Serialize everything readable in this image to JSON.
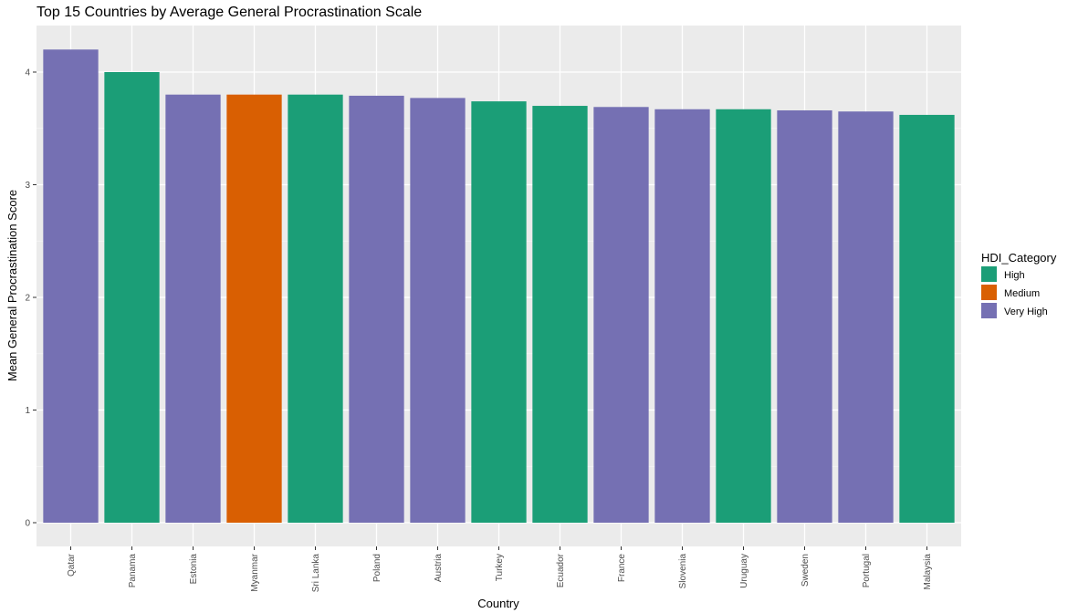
{
  "chart_data": {
    "type": "bar",
    "title": "Top 15 Countries by Average General Procrastination Scale",
    "xlabel": "Country",
    "ylabel": "Mean General Procrastination Score",
    "ylim": [
      0,
      4.2
    ],
    "yticks": [
      0,
      1,
      2,
      3,
      4
    ],
    "grid": true,
    "legend": {
      "title": "HDI_Category",
      "placement": "right",
      "entries": [
        {
          "name": "High",
          "color": "#1b9e77"
        },
        {
          "name": "Medium",
          "color": "#d95f02"
        },
        {
          "name": "Very High",
          "color": "#7570b3"
        }
      ]
    },
    "categories": [
      "Qatar",
      "Panama",
      "Estonia",
      "Myanmar",
      "Sri Lanka",
      "Poland",
      "Austria",
      "Turkey",
      "Ecuador",
      "France",
      "Slovenia",
      "Uruguay",
      "Sweden",
      "Portugal",
      "Malaysia"
    ],
    "values": [
      4.2,
      4.0,
      3.8,
      3.8,
      3.8,
      3.79,
      3.77,
      3.74,
      3.7,
      3.69,
      3.67,
      3.67,
      3.66,
      3.65,
      3.62
    ],
    "hdi_category": [
      "Very High",
      "High",
      "Very High",
      "Medium",
      "High",
      "Very High",
      "Very High",
      "High",
      "High",
      "Very High",
      "Very High",
      "High",
      "Very High",
      "Very High",
      "High"
    ]
  }
}
